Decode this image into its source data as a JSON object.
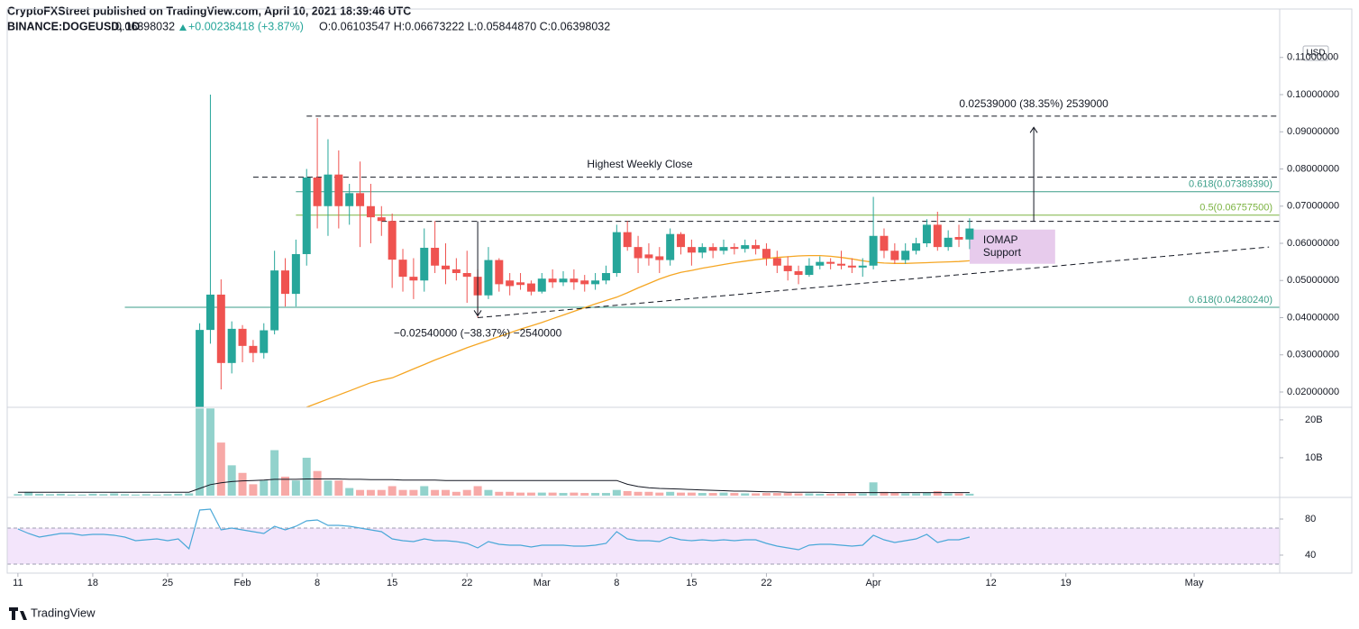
{
  "header": {
    "published": "CryptoFXStreet published on TradingView.com, April 10, 2021 18:39:46 UTC",
    "symbol": "BINANCE:DOGEUSD, 1D",
    "last": "0.06398032",
    "change": "+0.00238418 (+3.87%)",
    "ohlc": "O:0.06103547 H:0.06673222 L:0.05844870 C:0.06398032",
    "currency": "USD",
    "brand": "TradingView"
  },
  "chart_data": {
    "type": "candlestick",
    "dates": [
      "2021-01-11",
      "2021-01-12",
      "2021-01-13",
      "2021-01-14",
      "2021-01-15",
      "2021-01-16",
      "2021-01-17",
      "2021-01-18",
      "2021-01-19",
      "2021-01-20",
      "2021-01-21",
      "2021-01-22",
      "2021-01-23",
      "2021-01-24",
      "2021-01-25",
      "2021-01-26",
      "2021-01-27",
      "2021-01-28",
      "2021-01-29",
      "2021-01-30",
      "2021-01-31",
      "2021-02-01",
      "2021-02-02",
      "2021-02-03",
      "2021-02-04",
      "2021-02-05",
      "2021-02-06",
      "2021-02-07",
      "2021-02-08",
      "2021-02-09",
      "2021-02-10",
      "2021-02-11",
      "2021-02-12",
      "2021-02-13",
      "2021-02-14",
      "2021-02-15",
      "2021-02-16",
      "2021-02-17",
      "2021-02-18",
      "2021-02-19",
      "2021-02-20",
      "2021-02-21",
      "2021-02-22",
      "2021-02-23",
      "2021-02-24",
      "2021-02-25",
      "2021-02-26",
      "2021-02-27",
      "2021-02-28",
      "2021-03-01",
      "2021-03-02",
      "2021-03-03",
      "2021-03-04",
      "2021-03-05",
      "2021-03-06",
      "2021-03-07",
      "2021-03-08",
      "2021-03-09",
      "2021-03-10",
      "2021-03-11",
      "2021-03-12",
      "2021-03-13",
      "2021-03-14",
      "2021-03-15",
      "2021-03-16",
      "2021-03-17",
      "2021-03-18",
      "2021-03-19",
      "2021-03-20",
      "2021-03-21",
      "2021-03-22",
      "2021-03-23",
      "2021-03-24",
      "2021-03-25",
      "2021-03-26",
      "2021-03-27",
      "2021-03-28",
      "2021-03-29",
      "2021-03-30",
      "2021-03-31",
      "2021-04-01",
      "2021-04-02",
      "2021-04-03",
      "2021-04-04",
      "2021-04-05",
      "2021-04-06",
      "2021-04-07",
      "2021-04-08",
      "2021-04-09",
      "2021-04-10"
    ],
    "ohlc": [
      null,
      null,
      null,
      null,
      null,
      null,
      null,
      null,
      null,
      null,
      null,
      null,
      null,
      null,
      null,
      null,
      null,
      [
        0.0075,
        0.0385,
        0.0072,
        0.0367
      ],
      [
        0.0367,
        0.1,
        0.033,
        0.0462
      ],
      [
        0.0462,
        0.0503,
        0.0207,
        0.0278
      ],
      [
        0.0278,
        0.039,
        0.025,
        0.037
      ],
      [
        0.037,
        0.038,
        0.028,
        0.0324
      ],
      [
        0.0324,
        0.034,
        0.028,
        0.0305
      ],
      [
        0.0305,
        0.0385,
        0.029,
        0.0366
      ],
      [
        0.0366,
        0.058,
        0.0355,
        0.0527
      ],
      [
        0.0527,
        0.056,
        0.043,
        0.0464
      ],
      [
        0.0464,
        0.061,
        0.043,
        0.0571
      ],
      [
        0.0571,
        0.08,
        0.054,
        0.0777
      ],
      [
        0.0777,
        0.0937,
        0.064,
        0.07
      ],
      [
        0.07,
        0.088,
        0.062,
        0.0785
      ],
      [
        0.0785,
        0.085,
        0.064,
        0.07
      ],
      [
        0.07,
        0.076,
        0.065,
        0.0735
      ],
      [
        0.0735,
        0.082,
        0.059,
        0.07
      ],
      [
        0.07,
        0.076,
        0.06,
        0.067
      ],
      [
        0.067,
        0.07,
        0.062,
        0.066
      ],
      [
        0.066,
        0.068,
        0.048,
        0.0556
      ],
      [
        0.0556,
        0.0585,
        0.047,
        0.051
      ],
      [
        0.051,
        0.056,
        0.045,
        0.05
      ],
      [
        0.05,
        0.064,
        0.047,
        0.0588
      ],
      [
        0.0588,
        0.066,
        0.052,
        0.054
      ],
      [
        0.054,
        0.06,
        0.049,
        0.053
      ],
      [
        0.053,
        0.056,
        0.05,
        0.052
      ],
      [
        0.052,
        0.058,
        0.044,
        0.051
      ],
      [
        0.051,
        0.053,
        0.04,
        0.046
      ],
      [
        0.046,
        0.059,
        0.045,
        0.0555
      ],
      [
        0.0555,
        0.056,
        0.047,
        0.049
      ],
      [
        0.05,
        0.052,
        0.046,
        0.0485
      ],
      [
        0.0495,
        0.052,
        0.0475,
        0.0488
      ],
      [
        0.0492,
        0.05,
        0.046,
        0.047
      ],
      [
        0.047,
        0.052,
        0.0465,
        0.0505
      ],
      [
        0.0505,
        0.053,
        0.048,
        0.0495
      ],
      [
        0.0495,
        0.0525,
        0.0485,
        0.0505
      ],
      [
        0.0505,
        0.053,
        0.0475,
        0.0495
      ],
      [
        0.05,
        0.0515,
        0.047,
        0.049
      ],
      [
        0.049,
        0.052,
        0.0475,
        0.05
      ],
      [
        0.05,
        0.054,
        0.049,
        0.052
      ],
      [
        0.052,
        0.065,
        0.051,
        0.063
      ],
      [
        0.063,
        0.066,
        0.058,
        0.059
      ],
      [
        0.059,
        0.062,
        0.052,
        0.056
      ],
      [
        0.057,
        0.06,
        0.054,
        0.056
      ],
      [
        0.0565,
        0.059,
        0.052,
        0.0555
      ],
      [
        0.0555,
        0.064,
        0.054,
        0.0625
      ],
      [
        0.0625,
        0.063,
        0.057,
        0.059
      ],
      [
        0.059,
        0.061,
        0.054,
        0.0575
      ],
      [
        0.0575,
        0.06,
        0.056,
        0.059
      ],
      [
        0.059,
        0.06,
        0.056,
        0.058
      ],
      [
        0.058,
        0.061,
        0.057,
        0.059
      ],
      [
        0.059,
        0.06,
        0.057,
        0.0585
      ],
      [
        0.0585,
        0.061,
        0.0575,
        0.0595
      ],
      [
        0.0595,
        0.061,
        0.057,
        0.0585
      ],
      [
        0.0585,
        0.06,
        0.054,
        0.056
      ],
      [
        0.056,
        0.058,
        0.052,
        0.054
      ],
      [
        0.054,
        0.0565,
        0.05,
        0.0525
      ],
      [
        0.0525,
        0.054,
        0.049,
        0.0515
      ],
      [
        0.0515,
        0.056,
        0.051,
        0.054
      ],
      [
        0.054,
        0.0565,
        0.053,
        0.055
      ],
      [
        0.055,
        0.056,
        0.053,
        0.0545
      ],
      [
        0.0545,
        0.058,
        0.053,
        0.054
      ],
      [
        0.054,
        0.056,
        0.052,
        0.0535
      ],
      [
        0.0535,
        0.056,
        0.051,
        0.054
      ],
      [
        0.054,
        0.0725,
        0.053,
        0.062
      ],
      [
        0.062,
        0.064,
        0.056,
        0.058
      ],
      [
        0.058,
        0.06,
        0.0545,
        0.0555
      ],
      [
        0.0555,
        0.06,
        0.0545,
        0.058
      ],
      [
        0.058,
        0.0615,
        0.057,
        0.06
      ],
      [
        0.06,
        0.0665,
        0.059,
        0.065
      ],
      [
        0.065,
        0.0685,
        0.058,
        0.059
      ],
      [
        0.059,
        0.0635,
        0.058,
        0.0615
      ],
      [
        0.0617,
        0.065,
        0.059,
        0.061
      ],
      [
        0.06103547,
        0.06673222,
        0.0584487,
        0.06398032
      ]
    ],
    "up_color": "#26a69a",
    "down_color": "#ef5350",
    "ma": {
      "color": "#f5a623",
      "values": [
        null,
        null,
        null,
        null,
        null,
        null,
        null,
        null,
        null,
        null,
        null,
        null,
        null,
        null,
        null,
        null,
        null,
        null,
        null,
        null,
        null,
        null,
        null,
        null,
        null,
        null,
        null,
        0.0159,
        0.017,
        0.0181,
        0.0192,
        0.0203,
        0.0214,
        0.0225,
        0.0232,
        0.0238,
        0.025,
        0.0262,
        0.0274,
        0.0286,
        0.0297,
        0.0308,
        0.0319,
        0.0329,
        0.0339,
        0.0349,
        0.0359,
        0.0369,
        0.0378,
        0.0387,
        0.0397,
        0.0407,
        0.0417,
        0.0427,
        0.0437,
        0.0446,
        0.0455,
        0.0467,
        0.048,
        0.0492,
        0.0504,
        0.0514,
        0.0522,
        0.0527,
        0.0533,
        0.0538,
        0.0543,
        0.0548,
        0.0552,
        0.0556,
        0.0559,
        0.0562,
        0.0564,
        0.0566,
        0.0567,
        0.0567,
        0.0565,
        0.0562,
        0.0558,
        0.0553,
        0.0549,
        0.0547,
        0.0546,
        0.0546,
        0.0547,
        0.0548,
        0.0549,
        0.055,
        0.0551,
        0.0553
      ]
    },
    "xlim": [
      "2021-01-10",
      "2021-05-09"
    ],
    "xticks": [
      {
        "value": "2021-01-11",
        "label": "11"
      },
      {
        "value": "2021-01-18",
        "label": "18"
      },
      {
        "value": "2021-01-25",
        "label": "25"
      },
      {
        "value": "2021-02-01",
        "label": "Feb"
      },
      {
        "value": "2021-02-08",
        "label": "8"
      },
      {
        "value": "2021-02-15",
        "label": "15"
      },
      {
        "value": "2021-02-22",
        "label": "22"
      },
      {
        "value": "2021-03-01",
        "label": "Mar"
      },
      {
        "value": "2021-03-08",
        "label": "8"
      },
      {
        "value": "2021-03-15",
        "label": "15"
      },
      {
        "value": "2021-03-22",
        "label": "22"
      },
      {
        "value": "2021-04-01",
        "label": "Apr"
      },
      {
        "value": "2021-04-12",
        "label": "12"
      },
      {
        "value": "2021-04-19",
        "label": "19"
      },
      {
        "value": "2021-05-01",
        "label": "May"
      }
    ],
    "ylim": [
      0.01588,
      0.11576
    ],
    "yticks": [
      {
        "value": 0.02,
        "label": "0.02000000"
      },
      {
        "value": 0.03,
        "label": "0.03000000"
      },
      {
        "value": 0.04,
        "label": "0.04000000"
      },
      {
        "value": 0.05,
        "label": "0.05000000"
      },
      {
        "value": 0.06,
        "label": "0.06000000"
      },
      {
        "value": 0.07,
        "label": "0.07000000"
      },
      {
        "value": 0.08,
        "label": "0.08000000"
      },
      {
        "value": 0.09,
        "label": "0.09000000"
      },
      {
        "value": 0.1,
        "label": "0.10000000"
      },
      {
        "value": 0.11,
        "label": "0.11000000"
      }
    ],
    "levels": [
      {
        "value": 0.0942,
        "from": "2021-02-07",
        "style": "dashed",
        "color": "#131722"
      },
      {
        "value": 0.0778,
        "from": "2021-02-02",
        "style": "dashed",
        "color": "#131722"
      },
      {
        "value": 0.0738939,
        "from": "2021-02-06",
        "style": "solid",
        "color": "#3a9e88",
        "label": "0.618(0.07389390)"
      },
      {
        "value": 0.067575,
        "from": "2021-02-06",
        "style": "solid",
        "color": "#7cb342",
        "label": "0.5(0.06757500)"
      },
      {
        "value": 0.0659,
        "from": "2021-02-14",
        "style": "dashed",
        "color": "#131722"
      },
      {
        "value": 0.0428024,
        "from": "2021-01-21",
        "style": "solid",
        "color": "#3a9e88",
        "label": "0.618(0.04280240)"
      }
    ],
    "highest_weekly_close": "Highest Weekly Close",
    "measures": [
      {
        "date": "2021-04-16",
        "from": 0.0659,
        "to": 0.0912,
        "label": "0.02539000 (38.35%) 2539000"
      },
      {
        "date": "2021-02-23",
        "from": 0.0659,
        "to": 0.0405,
        "label": "−0.02540000 (−38.37%) −2540000"
      }
    ],
    "trendline": {
      "dates": [
        "2021-02-23",
        "2021-05-08"
      ],
      "values": [
        0.04,
        0.059
      ]
    },
    "support_box": {
      "dates": [
        "2021-04-10",
        "2021-04-18"
      ],
      "values": [
        0.0637,
        0.0545
      ],
      "label": [
        "IOMAP",
        "Support"
      ],
      "color": "#e1bee7"
    },
    "volume": {
      "values": [
        0.4,
        1.0,
        0.5,
        0.4,
        0.5,
        0.3,
        0.3,
        0.5,
        0.4,
        0.6,
        0.4,
        0.3,
        0.4,
        0.3,
        0.4,
        0.5,
        0.6,
        23,
        23,
        14,
        8,
        6,
        3,
        4,
        12,
        5,
        4,
        10,
        6.5,
        4,
        4,
        2,
        1.5,
        1.5,
        1.5,
        2.5,
        1.5,
        1.5,
        2.5,
        1.5,
        1.5,
        1,
        1.5,
        2.5,
        1.5,
        1,
        1,
        0.8,
        0.8,
        0.8,
        0.8,
        0.7,
        0.8,
        0.7,
        0.7,
        0.7,
        1.5,
        1.2,
        1,
        1,
        0.8,
        1,
        0.8,
        0.8,
        0.7,
        0.7,
        0.8,
        0.7,
        0.6,
        0.6,
        0.7,
        0.7,
        0.7,
        0.6,
        0.6,
        0.5,
        0.5,
        0.6,
        0.6,
        0.6,
        3.5,
        1,
        0.7,
        0.6,
        0.6,
        0.8,
        1.2,
        0.6,
        0.6,
        0.5
      ],
      "ma": [
        0.9,
        0.9,
        0.9,
        0.9,
        0.9,
        0.9,
        0.9,
        0.9,
        0.9,
        0.9,
        0.9,
        0.9,
        0.9,
        0.9,
        0.9,
        0.9,
        0.9,
        1.9,
        2.9,
        3.4,
        3.7,
        3.9,
        4.0,
        4.1,
        4.3,
        4.3,
        4.3,
        4.4,
        4.4,
        4.4,
        4.4,
        4.3,
        4.3,
        4.2,
        4.2,
        4.2,
        4.1,
        4.1,
        4.1,
        4.1,
        4.0,
        4.0,
        4.0,
        4.0,
        4.0,
        4.0,
        4.0,
        4.0,
        4.0,
        4.0,
        4.0,
        4.0,
        4.0,
        4.0,
        4.0,
        4.0,
        4.0,
        3.0,
        2.4,
        2.1,
        1.9,
        1.8,
        1.7,
        1.6,
        1.5,
        1.4,
        1.3,
        1.2,
        1.2,
        1.1,
        1.0,
        1.0,
        0.9,
        0.9,
        0.9,
        0.9,
        0.8,
        0.8,
        0.8,
        0.8,
        0.8,
        0.8,
        0.8,
        0.8,
        0.8,
        0.8,
        0.8,
        0.8,
        0.8,
        0.8
      ],
      "ylim": [
        0,
        23.3
      ],
      "yticks": [
        {
          "value": 10,
          "label": "10B"
        },
        {
          "value": 20,
          "label": "20B"
        }
      ]
    },
    "rsi": {
      "color": "#4aa8d8",
      "band": [
        30,
        70
      ],
      "band_color": "#f3e5fb",
      "values": [
        69,
        64,
        60,
        62,
        64,
        64,
        62,
        63,
        63,
        62,
        60,
        56,
        57,
        58,
        56,
        58,
        47,
        90,
        91,
        68,
        70,
        68,
        66,
        64,
        72,
        68,
        72,
        78,
        79,
        73,
        73,
        72,
        70,
        68,
        66,
        58,
        56,
        55,
        58,
        56,
        56,
        55,
        53,
        48,
        55,
        52,
        51,
        51,
        49,
        51,
        51,
        51,
        50,
        50,
        51,
        53,
        66,
        58,
        56,
        56,
        55,
        60,
        57,
        56,
        57,
        56,
        57,
        56,
        57,
        57,
        53,
        50,
        48,
        46,
        51,
        52,
        52,
        51,
        50,
        51,
        62,
        57,
        54,
        56,
        58,
        63,
        54,
        57,
        57,
        60
      ],
      "ylim": [
        20,
        104
      ],
      "yticks": [
        40,
        80
      ]
    }
  }
}
